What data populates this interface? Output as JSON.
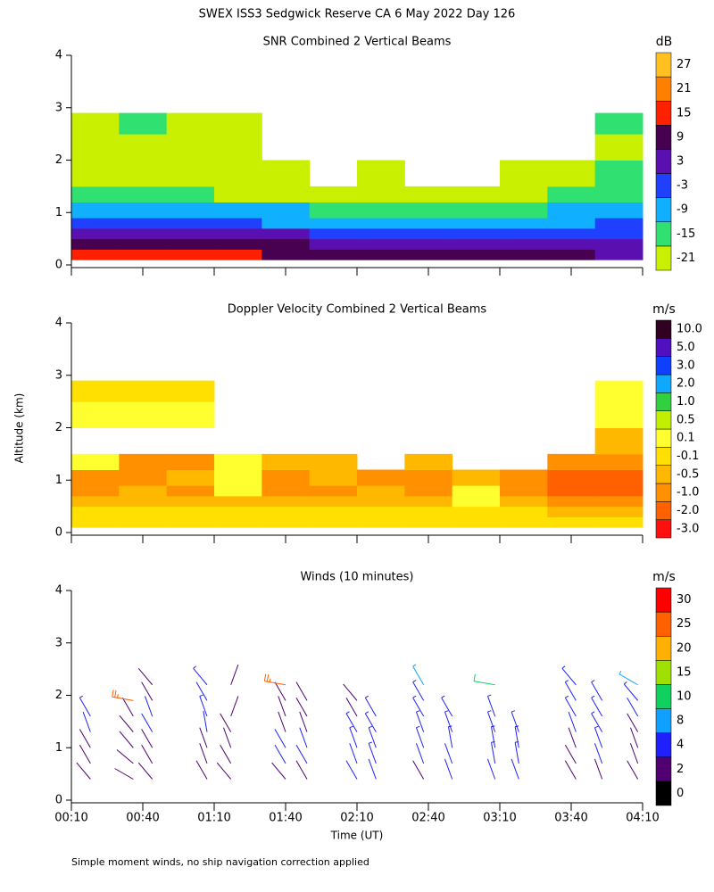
{
  "page_title": "SWEX ISS3 Sedgwick Reserve CA   6 May 2022 Day 126",
  "note": "Simple moment winds, no ship navigation correction applied",
  "chart_data": [
    {
      "type": "heatmap",
      "title": "SNR Combined 2 Vertical Beams",
      "xlim": [
        10,
        250
      ],
      "xticks": [
        10,
        40,
        70,
        100,
        130,
        160,
        190,
        220,
        250
      ],
      "ylim": [
        0,
        4
      ],
      "yticks": [
        0,
        1,
        2,
        3,
        4
      ],
      "x_edges": [
        10,
        30,
        50,
        70,
        90,
        110,
        130,
        150,
        170,
        190,
        210,
        230,
        250
      ],
      "y_edges": [
        0.1,
        0.3,
        0.5,
        0.7,
        0.9,
        1.2,
        1.5,
        2.0,
        2.5,
        2.9
      ],
      "values": [
        [
          20,
          20,
          18,
          16,
          12,
          10,
          9,
          9,
          9,
          9,
          9,
          8
        ],
        [
          12,
          12,
          11,
          10,
          9,
          5,
          4,
          4,
          5,
          6,
          6,
          4
        ],
        [
          6,
          6,
          5,
          4,
          3,
          0,
          0,
          -1,
          -1,
          0,
          1,
          0
        ],
        [
          0,
          0,
          -2,
          -3,
          -4,
          -5,
          -5,
          -6,
          -5,
          -4,
          -4,
          -3
        ],
        [
          -6,
          -7,
          -8,
          -8,
          -9,
          -10,
          -12,
          -12,
          -11,
          -10,
          -9,
          -8
        ],
        [
          -14,
          -14,
          -15,
          -16,
          -17,
          -18,
          -19,
          -19,
          -18,
          -16,
          -15,
          -12
        ],
        [
          -18,
          -19,
          -19,
          -20,
          -20,
          null,
          -20,
          null,
          null,
          -20,
          -19,
          -14
        ],
        [
          -17,
          -19,
          -20,
          -19,
          null,
          null,
          null,
          null,
          null,
          null,
          null,
          -16
        ],
        [
          -18,
          -15,
          -18,
          -17,
          null,
          null,
          null,
          null,
          null,
          null,
          null,
          -15
        ]
      ],
      "colorbar": {
        "unit": "dB",
        "levels": [
          -21,
          -15,
          -9,
          -3,
          3,
          9,
          15,
          21,
          27
        ],
        "colors": [
          "#c8f000",
          "#30e070",
          "#10b0ff",
          "#2040ff",
          "#5a10b0",
          "#480050",
          "#ff2000",
          "#ff8000",
          "#ffc020"
        ]
      }
    },
    {
      "type": "heatmap",
      "title": "Doppler Velocity Combined 2 Vertical Beams",
      "y_label": "Altitude (km)",
      "xlim": [
        10,
        250
      ],
      "xticks": [
        10,
        40,
        70,
        100,
        130,
        160,
        190,
        220,
        250
      ],
      "ylim": [
        0,
        4
      ],
      "yticks": [
        0,
        1,
        2,
        3,
        4
      ],
      "x_edges": [
        10,
        30,
        50,
        70,
        90,
        110,
        130,
        150,
        170,
        190,
        210,
        230,
        250
      ],
      "y_edges": [
        0.1,
        0.3,
        0.5,
        0.7,
        0.9,
        1.2,
        1.5,
        2.0,
        2.5,
        2.9
      ],
      "values": [
        [
          0,
          0,
          0,
          0,
          0,
          0,
          0,
          0,
          0,
          0,
          0,
          0
        ],
        [
          0,
          0,
          0,
          0,
          0,
          0,
          0,
          0,
          0,
          0,
          -0.2,
          -0.2
        ],
        [
          -0.2,
          -0.3,
          -0.2,
          -0.2,
          -0.2,
          -0.2,
          -0.3,
          -0.3,
          0.2,
          -0.3,
          -0.6,
          -0.7
        ],
        [
          -0.6,
          -0.5,
          -0.7,
          0.2,
          -0.6,
          -0.6,
          -0.4,
          -0.8,
          0.3,
          -0.6,
          -1.2,
          -1.2
        ],
        [
          -0.7,
          -0.6,
          -0.5,
          0.3,
          -0.6,
          -0.5,
          -0.6,
          -0.7,
          -0.4,
          -0.6,
          -1.5,
          -1.3
        ],
        [
          0.2,
          -0.6,
          -0.6,
          0.3,
          -0.3,
          -0.5,
          null,
          -0.4,
          null,
          null,
          -0.8,
          -0.7
        ],
        [
          null,
          null,
          null,
          null,
          null,
          null,
          null,
          null,
          null,
          null,
          null,
          -0.5
        ],
        [
          0.2,
          0.15,
          0.2,
          null,
          null,
          null,
          null,
          null,
          null,
          null,
          null,
          0.2
        ],
        [
          0,
          0,
          0,
          null,
          null,
          null,
          null,
          null,
          null,
          null,
          null,
          0.3
        ]
      ],
      "colorbar": {
        "unit": "m/s",
        "levels": [
          {
            "value": -3,
            "label": "-3.0"
          },
          {
            "value": -2,
            "label": "-2.0"
          },
          {
            "value": -1,
            "label": "-1.0"
          },
          -0.5,
          -0.1,
          0.1,
          0.5,
          {
            "value": 1,
            "label": "1.0"
          },
          {
            "value": 2,
            "label": "2.0"
          },
          {
            "value": 3,
            "label": "3.0"
          },
          {
            "value": 5,
            "label": "5.0"
          },
          {
            "value": 10,
            "label": "10.0"
          }
        ],
        "colors": [
          "#ff1010",
          "#ff6000",
          "#ff9000",
          "#ffb800",
          "#ffe000",
          "#ffff30",
          "#c0f000",
          "#30d040",
          "#10a8ff",
          "#1040ff",
          "#5010c0",
          "#300020"
        ]
      }
    },
    {
      "type": "barbs",
      "title": "Winds (10 minutes)",
      "x_label": "Time (UT)",
      "xlim": [
        10,
        250
      ],
      "xticks": [
        {
          "value": 10,
          "label": "00:10"
        },
        {
          "value": 40,
          "label": "00:40"
        },
        {
          "value": 70,
          "label": "01:10"
        },
        {
          "value": 100,
          "label": "01:40"
        },
        {
          "value": 130,
          "label": "02:10"
        },
        {
          "value": 160,
          "label": "02:40"
        },
        {
          "value": 190,
          "label": "03:10"
        },
        {
          "value": 220,
          "label": "03:40"
        },
        {
          "value": 250,
          "label": "04:10"
        }
      ],
      "ylim": [
        0,
        4
      ],
      "yticks": [
        0,
        1,
        2,
        3,
        4
      ],
      "altitudes": [
        0.4,
        0.7,
        1.0,
        1.3,
        1.6,
        1.9,
        2.2
      ],
      "profiles": [
        {
          "time": 18,
          "speed": [
            2,
            3,
            3,
            4,
            5,
            null,
            null
          ],
          "direction": [
            320,
            330,
            330,
            340,
            330,
            null,
            null
          ]
        },
        {
          "time": 36,
          "speed": [
            2,
            3,
            3,
            3,
            3,
            25,
            null
          ],
          "direction": [
            300,
            310,
            320,
            320,
            330,
            280,
            null
          ]
        },
        {
          "time": 44,
          "speed": [
            2,
            3,
            3,
            4,
            4,
            3,
            3
          ],
          "direction": [
            320,
            330,
            330,
            330,
            340,
            330,
            320
          ]
        },
        {
          "time": 67,
          "speed": [
            2,
            2,
            3,
            4,
            5,
            4,
            6
          ],
          "direction": [
            330,
            340,
            340,
            350,
            340,
            330,
            320
          ]
        },
        {
          "time": 77,
          "speed": [
            2,
            3,
            3,
            3,
            2,
            null,
            2
          ],
          "direction": [
            320,
            330,
            340,
            330,
            20,
            null,
            20
          ]
        },
        {
          "time": 100,
          "speed": [
            3,
            4,
            4,
            3,
            3,
            3,
            25
          ],
          "direction": [
            320,
            330,
            330,
            340,
            340,
            330,
            280
          ]
        },
        {
          "time": 109,
          "speed": [
            3,
            4,
            4,
            3,
            3,
            2,
            null
          ],
          "direction": [
            330,
            330,
            340,
            340,
            330,
            330,
            null
          ]
        },
        {
          "time": 130,
          "speed": [
            4,
            4,
            5,
            5,
            3,
            3,
            null
          ],
          "direction": [
            330,
            340,
            340,
            330,
            330,
            320,
            null
          ]
        },
        {
          "time": 138,
          "speed": [
            4,
            5,
            6,
            6,
            5,
            null,
            null
          ],
          "direction": [
            340,
            340,
            340,
            330,
            330,
            null,
            null
          ]
        },
        {
          "time": 158,
          "speed": [
            3,
            4,
            5,
            5,
            6,
            6,
            8
          ],
          "direction": [
            330,
            340,
            340,
            340,
            330,
            330,
            330
          ]
        },
        {
          "time": 170,
          "speed": [
            4,
            4,
            5,
            5,
            5,
            null,
            null
          ],
          "direction": [
            340,
            340,
            350,
            340,
            330,
            null,
            null
          ]
        },
        {
          "time": 188,
          "speed": [
            4,
            5,
            6,
            6,
            6,
            null,
            10
          ],
          "direction": [
            340,
            350,
            350,
            340,
            340,
            null,
            280
          ]
        },
        {
          "time": 198,
          "speed": [
            4,
            5,
            5,
            6,
            null,
            null,
            null
          ],
          "direction": [
            340,
            350,
            350,
            340,
            null,
            null,
            null
          ]
        },
        {
          "time": 222,
          "speed": [
            2,
            2,
            3,
            4,
            5,
            5,
            6
          ],
          "direction": [
            330,
            330,
            340,
            340,
            330,
            330,
            320
          ]
        },
        {
          "time": 233,
          "speed": [
            3,
            4,
            5,
            6,
            6,
            5,
            null
          ],
          "direction": [
            340,
            340,
            340,
            330,
            330,
            330,
            null
          ]
        },
        {
          "time": 248,
          "speed": [
            2,
            2,
            3,
            3,
            4,
            5,
            8
          ],
          "direction": [
            330,
            340,
            340,
            330,
            330,
            320,
            300
          ]
        }
      ],
      "colorbar": {
        "unit": "m/s",
        "levels": [
          0,
          2,
          4,
          8,
          10,
          15,
          20,
          25,
          30
        ],
        "colors": [
          "#000000",
          "#500070",
          "#2020ff",
          "#10a0ff",
          "#10d060",
          "#a0e000",
          "#ffb000",
          "#ff6000",
          "#ff0000"
        ]
      }
    }
  ]
}
